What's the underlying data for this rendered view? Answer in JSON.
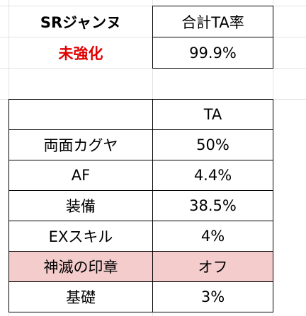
{
  "header": {
    "title": "SRジャンヌ",
    "status": "未強化"
  },
  "summary": {
    "label": "合計TA率",
    "value": "99.9%"
  },
  "table": {
    "column_header": "TA",
    "rows": [
      [
        "両面カグヤ",
        "50%"
      ],
      [
        "AF",
        "4.4%"
      ],
      [
        "装備",
        "38.5%"
      ],
      [
        "EXスキル",
        "4%"
      ],
      [
        "神滅の印章",
        "オフ"
      ],
      [
        "基礎",
        "3%"
      ]
    ]
  }
}
